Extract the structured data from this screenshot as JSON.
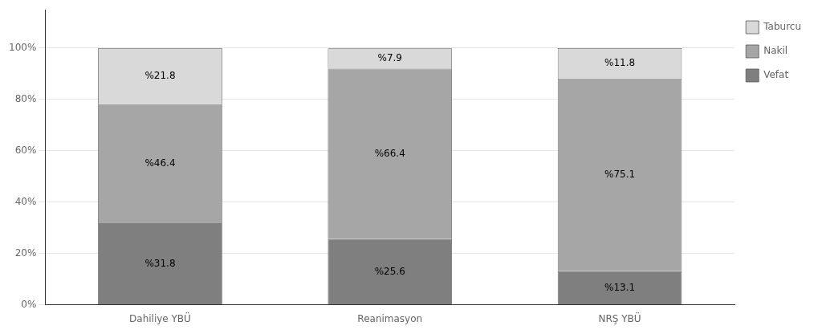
{
  "chart_data": {
    "type": "bar",
    "stacked": true,
    "categories": [
      "Dahiliye YBÜ",
      "Reanimasyon",
      "NRŞ YBÜ"
    ],
    "series": [
      {
        "name": "Vefat",
        "color": "#7f7f7f",
        "values": [
          31.8,
          25.6,
          13.1
        ],
        "value_labels": [
          "%31.8",
          "%25.6",
          "%13.1"
        ]
      },
      {
        "name": "Nakil",
        "color": "#a6a6a6",
        "values": [
          46.4,
          66.4,
          75.1
        ],
        "value_labels": [
          "%46.4",
          "%66.4",
          "%75.1"
        ]
      },
      {
        "name": "Taburcu",
        "color": "#d9d9d9",
        "values": [
          21.8,
          7.9,
          11.8
        ],
        "value_labels": [
          "%21.8",
          "%7.9",
          "%11.8"
        ]
      }
    ],
    "ylim": [
      0,
      115
    ],
    "yticks": [
      {
        "value": 0,
        "label": "0%"
      },
      {
        "value": 20,
        "label": "20%"
      },
      {
        "value": 40,
        "label": "40%"
      },
      {
        "value": 60,
        "label": "60%"
      },
      {
        "value": 80,
        "label": "80%"
      },
      {
        "value": 100,
        "label": "100%"
      }
    ],
    "grid": true,
    "legend": "right",
    "data_labels": true
  }
}
